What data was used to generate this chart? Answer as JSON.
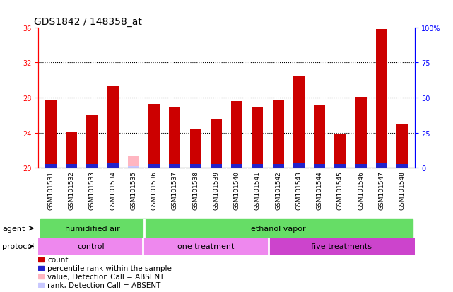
{
  "title": "GDS1842 / 148358_at",
  "samples": [
    "GSM101531",
    "GSM101532",
    "GSM101533",
    "GSM101534",
    "GSM101535",
    "GSM101536",
    "GSM101537",
    "GSM101538",
    "GSM101539",
    "GSM101540",
    "GSM101541",
    "GSM101542",
    "GSM101543",
    "GSM101544",
    "GSM101545",
    "GSM101546",
    "GSM101547",
    "GSM101548"
  ],
  "count_values": [
    27.7,
    24.1,
    26.0,
    29.3,
    0.0,
    27.3,
    27.0,
    24.4,
    25.6,
    27.6,
    26.9,
    27.8,
    30.5,
    27.2,
    23.8,
    28.1,
    35.8,
    25.0
  ],
  "percentile_values": [
    0.45,
    0.45,
    0.45,
    0.5,
    0.0,
    0.45,
    0.45,
    0.45,
    0.45,
    0.45,
    0.45,
    0.45,
    0.5,
    0.45,
    0.45,
    0.45,
    0.5,
    0.45
  ],
  "absent_value": 21.3,
  "absent_rank_value": 20.2,
  "absent_idx": 4,
  "ymin": 20,
  "ymax": 36,
  "yticks_left": [
    20,
    24,
    28,
    32,
    36
  ],
  "yticks_right_labels": [
    "0",
    "25",
    "50",
    "75",
    "100%"
  ],
  "yticks_right_pos": [
    20,
    21.0,
    22.0,
    23.0,
    24.0
  ],
  "bar_color": "#cc0000",
  "percentile_color": "#2222cc",
  "absent_bar_color": "#ffb6c1",
  "absent_rank_color": "#c8c8ff",
  "bg_gray": "#c8c8c8",
  "plot_bg": "#ffffff",
  "green_color": "#66dd66",
  "pink_color": "#ee88ee",
  "purple_color": "#cc44cc",
  "legend_items": [
    {
      "label": "count",
      "color": "#cc0000"
    },
    {
      "label": "percentile rank within the sample",
      "color": "#2222cc"
    },
    {
      "label": "value, Detection Call = ABSENT",
      "color": "#ffb6c1"
    },
    {
      "label": "rank, Detection Call = ABSENT",
      "color": "#c8c8ff"
    }
  ],
  "title_fontsize": 10,
  "tick_fontsize": 7,
  "band_fontsize": 8,
  "legend_fontsize": 7.5
}
